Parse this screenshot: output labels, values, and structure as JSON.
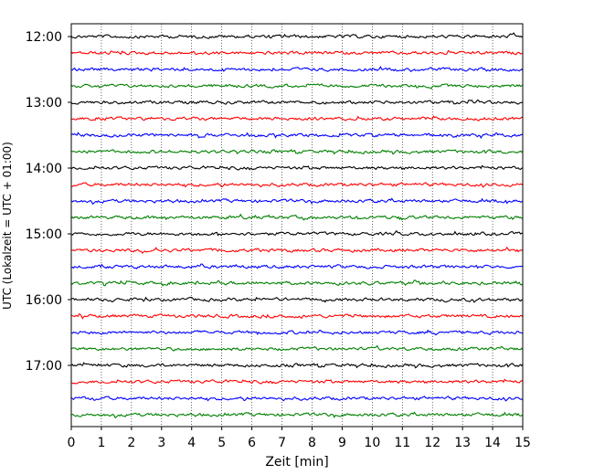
{
  "chart_data": {
    "type": "line",
    "title": "",
    "xlabel": "Zeit  [min]",
    "ylabel": "UTC (Lokalzeit = UTC + 01:00)",
    "xlim": [
      0,
      15
    ],
    "x_ticks": [
      0,
      1,
      2,
      3,
      4,
      5,
      6,
      7,
      8,
      9,
      10,
      11,
      12,
      13,
      14,
      15
    ],
    "y_tick_labels": [
      "12:00",
      "13:00",
      "14:00",
      "15:00",
      "16:00",
      "17:00"
    ],
    "grid": "vertical dotted",
    "trace_start_utc": "12:00",
    "trace_length_min": 15,
    "trace_count": 24,
    "trace_colors": [
      "#000000",
      "#ff0000",
      "#0000ff",
      "#008000"
    ]
  }
}
